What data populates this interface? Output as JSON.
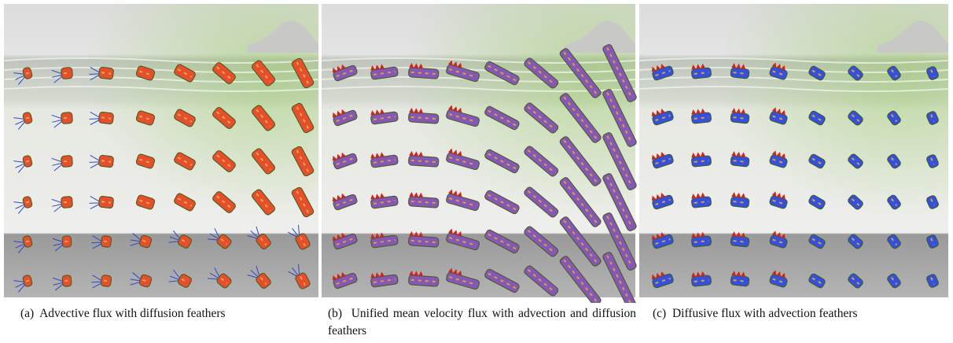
{
  "figure": {
    "panels": [
      {
        "label": "(a)",
        "caption": "Advective flux with diffusion feathers"
      },
      {
        "label": "(b)",
        "caption": "Unified mean velocity flux with advection and diffusion feathers"
      },
      {
        "label": "(c)",
        "caption": "Diffusive flux with advection feathers"
      }
    ]
  }
}
